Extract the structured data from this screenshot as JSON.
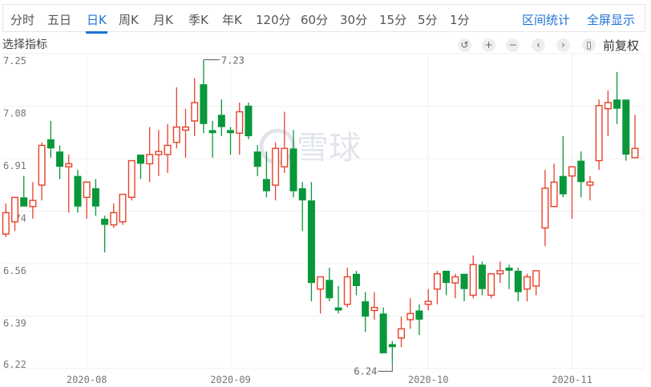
{
  "toolbar": {
    "tabs": [
      "分时",
      "五日",
      "日K",
      "周K",
      "月K",
      "季K",
      "年K",
      "120分",
      "60分",
      "30分",
      "15分",
      "5分",
      "1分"
    ],
    "active_tab": "日K",
    "range_stats": "区间统计",
    "fullscreen": "全屏显示"
  },
  "indicator_select": "选择指标",
  "controls": {
    "icons": [
      "undo-icon",
      "zoom-in-icon",
      "zoom-out-icon",
      "pan-left-icon",
      "pan-right-icon",
      "candle-style-icon"
    ],
    "glyphs": [
      "↺",
      "+",
      "−",
      "‹",
      "›",
      "▯"
    ],
    "adjust": "前复权"
  },
  "watermark": "雪球",
  "colors": {
    "up": "#e8402a",
    "down": "#08973a",
    "accent": "#1f72d8"
  },
  "chart_data": {
    "type": "candlestick",
    "ylim": [
      6.22,
      7.25
    ],
    "yticks": [
      "7.25",
      "7.08",
      "6.91",
      "6.74",
      "6.56",
      "6.39",
      "6.22"
    ],
    "xticks": [
      {
        "label": "2020-08",
        "index": 9
      },
      {
        "label": "2020-09",
        "index": 25
      },
      {
        "label": "2020-10",
        "index": 47
      },
      {
        "label": "2020-11",
        "index": 63
      }
    ],
    "grid": true,
    "annotations": [
      {
        "label": "7.23",
        "index": 22,
        "value": 7.23,
        "kind": "high"
      },
      {
        "label": "6.24",
        "index": 43,
        "value": 6.24,
        "kind": "low"
      }
    ],
    "ohlc": [
      [
        6.66,
        6.76,
        6.65,
        6.73
      ],
      [
        6.7,
        6.78,
        6.67,
        6.78
      ],
      [
        6.78,
        6.85,
        6.75,
        6.75
      ],
      [
        6.75,
        6.83,
        6.71,
        6.77
      ],
      [
        6.82,
        6.96,
        6.77,
        6.95
      ],
      [
        6.97,
        7.03,
        6.91,
        6.94
      ],
      [
        6.93,
        6.95,
        6.84,
        6.88
      ],
      [
        6.88,
        6.92,
        6.73,
        6.89
      ],
      [
        6.85,
        6.87,
        6.73,
        6.75
      ],
      [
        6.78,
        6.83,
        6.71,
        6.83
      ],
      [
        6.81,
        6.84,
        6.72,
        6.75
      ],
      [
        6.71,
        6.72,
        6.6,
        6.69
      ],
      [
        6.69,
        6.76,
        6.68,
        6.73
      ],
      [
        6.7,
        6.79,
        6.69,
        6.79
      ],
      [
        6.78,
        6.9,
        6.77,
        6.9
      ],
      [
        6.92,
        6.92,
        6.84,
        6.89
      ],
      [
        6.89,
        7.01,
        6.83,
        6.92
      ],
      [
        6.92,
        7.0,
        6.85,
        6.93
      ],
      [
        6.92,
        7.02,
        6.86,
        6.95
      ],
      [
        6.96,
        7.14,
        6.94,
        7.01
      ],
      [
        7.0,
        7.07,
        6.91,
        7.01
      ],
      [
        7.03,
        7.17,
        6.98,
        7.09
      ],
      [
        7.15,
        7.23,
        6.99,
        7.02
      ],
      [
        7.0,
        7.03,
        6.91,
        6.99
      ],
      [
        7.05,
        7.1,
        6.98,
        7.01
      ],
      [
        7.0,
        7.01,
        6.92,
        6.99
      ],
      [
        6.99,
        7.09,
        6.92,
        7.06
      ],
      [
        7.08,
        7.09,
        6.97,
        6.98
      ],
      [
        6.93,
        6.95,
        6.85,
        6.88
      ],
      [
        6.84,
        6.93,
        6.78,
        6.8
      ],
      [
        6.82,
        6.96,
        6.77,
        6.94
      ],
      [
        6.88,
        7.06,
        6.86,
        6.94
      ],
      [
        6.94,
        7.0,
        6.78,
        6.8
      ],
      [
        6.81,
        6.83,
        6.67,
        6.77
      ],
      [
        6.77,
        6.83,
        6.44,
        6.5
      ],
      [
        6.48,
        6.52,
        6.4,
        6.52
      ],
      [
        6.51,
        6.55,
        6.44,
        6.45
      ],
      [
        6.42,
        6.49,
        6.4,
        6.41
      ],
      [
        6.43,
        6.55,
        6.42,
        6.52
      ],
      [
        6.53,
        6.54,
        6.46,
        6.49
      ],
      [
        6.44,
        6.47,
        6.34,
        6.39
      ],
      [
        6.41,
        6.47,
        6.38,
        6.42
      ],
      [
        6.4,
        6.42,
        6.27,
        6.27
      ],
      [
        6.3,
        6.31,
        6.24,
        6.29
      ],
      [
        6.32,
        6.39,
        6.29,
        6.35
      ],
      [
        6.38,
        6.45,
        6.35,
        6.4
      ],
      [
        6.41,
        6.43,
        6.33,
        6.38
      ],
      [
        6.43,
        6.48,
        6.41,
        6.44
      ],
      [
        6.48,
        6.54,
        6.43,
        6.53
      ],
      [
        6.54,
        6.54,
        6.46,
        6.5
      ],
      [
        6.5,
        6.53,
        6.45,
        6.52
      ],
      [
        6.53,
        6.53,
        6.44,
        6.48
      ],
      [
        6.46,
        6.59,
        6.45,
        6.56
      ],
      [
        6.56,
        6.57,
        6.46,
        6.48
      ],
      [
        6.46,
        6.53,
        6.45,
        6.53
      ],
      [
        6.53,
        6.57,
        6.5,
        6.54
      ],
      [
        6.55,
        6.56,
        6.48,
        6.54
      ],
      [
        6.54,
        6.55,
        6.44,
        6.47
      ],
      [
        6.48,
        6.53,
        6.44,
        6.52
      ],
      [
        6.49,
        6.54,
        6.46,
        6.54
      ],
      [
        6.68,
        6.87,
        6.62,
        6.81
      ],
      [
        6.75,
        6.89,
        6.75,
        6.83
      ],
      [
        6.85,
        6.98,
        6.78,
        6.79
      ],
      [
        6.85,
        6.88,
        6.71,
        6.88
      ],
      [
        6.9,
        6.93,
        6.78,
        6.83
      ],
      [
        6.82,
        6.85,
        6.77,
        6.83
      ],
      [
        6.9,
        7.1,
        6.87,
        7.08
      ],
      [
        7.07,
        7.13,
        6.98,
        7.09
      ],
      [
        7.1,
        7.19,
        7.02,
        7.07
      ],
      [
        7.1,
        7.1,
        6.9,
        6.92
      ],
      [
        6.91,
        7.05,
        6.91,
        6.94
      ]
    ]
  }
}
